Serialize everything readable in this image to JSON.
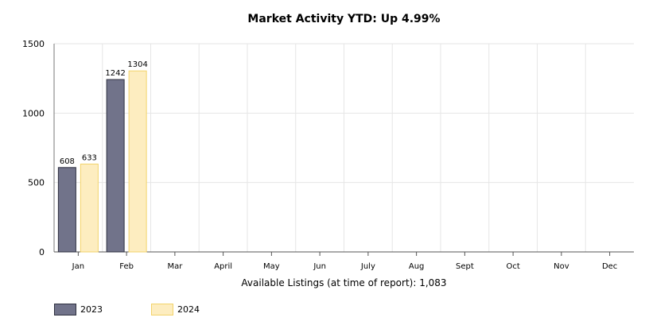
{
  "chart_data": {
    "type": "bar",
    "title": "Market Activity YTD: Up 4.99%",
    "xlabel": "Available Listings (at time of report): 1,083",
    "ylabel": "",
    "ylim": [
      0,
      1500
    ],
    "yticks": [
      0,
      500,
      1000,
      1500
    ],
    "grid": true,
    "legend_position": "bottom-left",
    "categories": [
      "Jan",
      "Feb",
      "Mar",
      "April",
      "May",
      "Jun",
      "July",
      "Aug",
      "Sept",
      "Oct",
      "Nov",
      "Dec"
    ],
    "series": [
      {
        "name": "2023",
        "values": [
          608,
          1242,
          null,
          null,
          null,
          null,
          null,
          null,
          null,
          null,
          null,
          null
        ],
        "color": "#71738a",
        "stroke": "#2f3140"
      },
      {
        "name": "2024",
        "values": [
          633,
          1304,
          null,
          null,
          null,
          null,
          null,
          null,
          null,
          null,
          null,
          null
        ],
        "color": "#fdedc0",
        "stroke": "#f2d36a"
      }
    ]
  }
}
